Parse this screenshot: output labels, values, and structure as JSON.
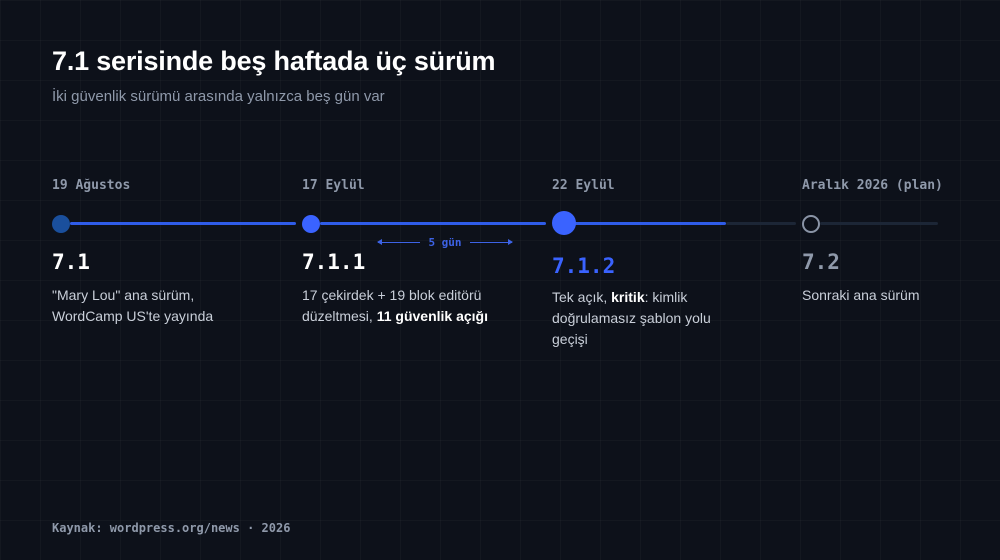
{
  "header": {
    "title": "7.1 serisinde beş haftada üç sürüm",
    "subtitle": "İki güvenlik sürümü arasında yalnızca beş gün var"
  },
  "timeline": {
    "milestones": [
      {
        "date": "19 Ağustos",
        "version": "7.1",
        "desc": [
          {
            "text": "\"Mary Lou\" ana sürüm,"
          },
          {
            "text": "WordCamp US'te yayında"
          }
        ]
      },
      {
        "date": "17 Eylül",
        "version": "7.1.1",
        "desc": [
          {
            "text": "17 çekirdek + 19 blok editörü"
          },
          {
            "text": "düzeltmesi, "
          },
          {
            "text": "11 güvenlik açığı"
          }
        ]
      },
      {
        "date": "22 Eylül",
        "version": "7.1.2",
        "desc": [
          {
            "text": "Tek açık, "
          },
          {
            "text": "kritik"
          },
          {
            "text": ": kimlik"
          },
          {
            "text": "doğrulamasız şablon yolu"
          },
          {
            "text": "geçişi"
          }
        ]
      },
      {
        "date": "Aralık 2026 (plan)",
        "version": "7.2",
        "desc": [
          {
            "text": "Sonraki ana sürüm"
          }
        ]
      }
    ],
    "gap_label": "5 gün"
  },
  "colors": {
    "accent": "#2f5ce8",
    "accent_bright": "#3a63ff",
    "dot_first": "#1a4f9c",
    "track_muted": "#1c2636",
    "future_ring": "#8a94a6",
    "version_future": "#8f99aa"
  },
  "footer": {
    "source": "Kaynak: wordpress.org/news · 2026"
  }
}
